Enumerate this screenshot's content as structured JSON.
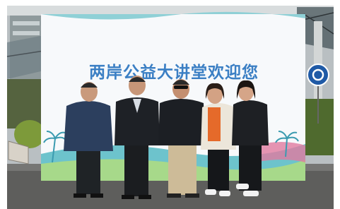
{
  "banner": {
    "text": "两岸公益大讲堂欢迎您"
  }
}
